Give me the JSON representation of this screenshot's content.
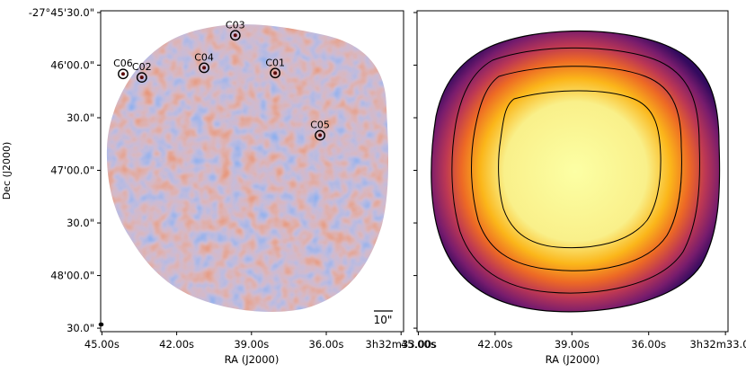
{
  "chart_data": {
    "type": "heatmap",
    "panels": [
      {
        "id": "signal-map",
        "kind": "residual map",
        "colormap": "coolwarm",
        "sources": [
          {
            "label": "C01",
            "ra_s": 38.05,
            "dec_s": 34.5
          },
          {
            "label": "C02",
            "ra_s": 43.4,
            "dec_s": 37.0
          },
          {
            "label": "C03",
            "ra_s": 39.65,
            "dec_s": 13.0
          },
          {
            "label": "C04",
            "ra_s": 40.9,
            "dec_s": 31.5
          },
          {
            "label": "C05",
            "ra_s": 36.25,
            "dec_s": 70.0
          },
          {
            "label": "C06",
            "ra_s": 44.15,
            "dec_s": 35.0
          }
        ],
        "scalebar_label": "10\""
      },
      {
        "id": "pb-map",
        "kind": "primary beam",
        "colormap": "inferno",
        "contours": 4
      }
    ],
    "x_axis": {
      "label": "RA (J2000)",
      "ticks": [
        {
          "value": 45,
          "label": "45.00s"
        },
        {
          "value": 42,
          "label": "42.00s"
        },
        {
          "value": 39,
          "label": "39.00s"
        },
        {
          "value": 36,
          "label": "36.00s"
        },
        {
          "value": 33,
          "label": "3h32m33.00s"
        }
      ],
      "range": [
        45.05,
        32.9
      ]
    },
    "y_axis": {
      "label": "Dec (J2000)",
      "ticks": [
        {
          "value": 0,
          "label": "-27°45'30.0\""
        },
        {
          "value": 30,
          "label": "46'00.0\""
        },
        {
          "value": 60,
          "label": "30.0\""
        },
        {
          "value": 90,
          "label": "47'00.0\""
        },
        {
          "value": 120,
          "label": "30.0\""
        },
        {
          "value": 150,
          "label": "48'00.0\""
        },
        {
          "value": 180,
          "label": "30.0\""
        }
      ],
      "range": [
        -1,
        182
      ]
    }
  }
}
